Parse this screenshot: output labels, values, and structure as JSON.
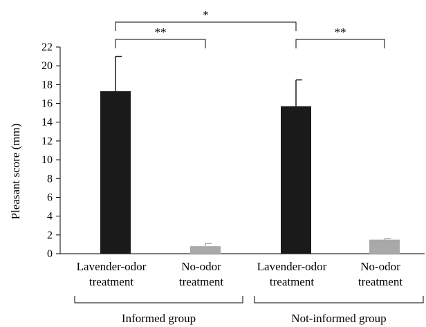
{
  "chart_data": {
    "type": "bar",
    "ylabel": "Pleasant score (mm)",
    "ylim": [
      0,
      22
    ],
    "yticks": [
      0,
      2,
      4,
      6,
      8,
      10,
      12,
      14,
      16,
      18,
      20,
      22
    ],
    "grid": false,
    "bars": [
      {
        "label": [
          "Lavender-odor",
          "treatment"
        ],
        "value": 17.3,
        "error": 3.7,
        "color": "#1a1a1a"
      },
      {
        "label": [
          "No-odor",
          "treatment"
        ],
        "value": 0.8,
        "error": 0.3,
        "color": "#a9a9a9"
      },
      {
        "label": [
          "Lavender-odor",
          "treatment"
        ],
        "value": 15.7,
        "error": 2.8,
        "color": "#1a1a1a"
      },
      {
        "label": [
          "No-odor",
          "treatment"
        ],
        "value": 1.5,
        "error": 0.1,
        "color": "#a9a9a9"
      }
    ],
    "groups": [
      {
        "label": "Informed group",
        "bars": [
          0,
          1
        ]
      },
      {
        "label": "Not-informed group",
        "bars": [
          2,
          3
        ]
      }
    ],
    "significance": [
      {
        "from": 0,
        "to": 2,
        "label": "*",
        "level": 2
      },
      {
        "from": 0,
        "to": 1,
        "label": "**",
        "level": 1
      },
      {
        "from": 2,
        "to": 3,
        "label": "**",
        "level": 1
      }
    ]
  }
}
